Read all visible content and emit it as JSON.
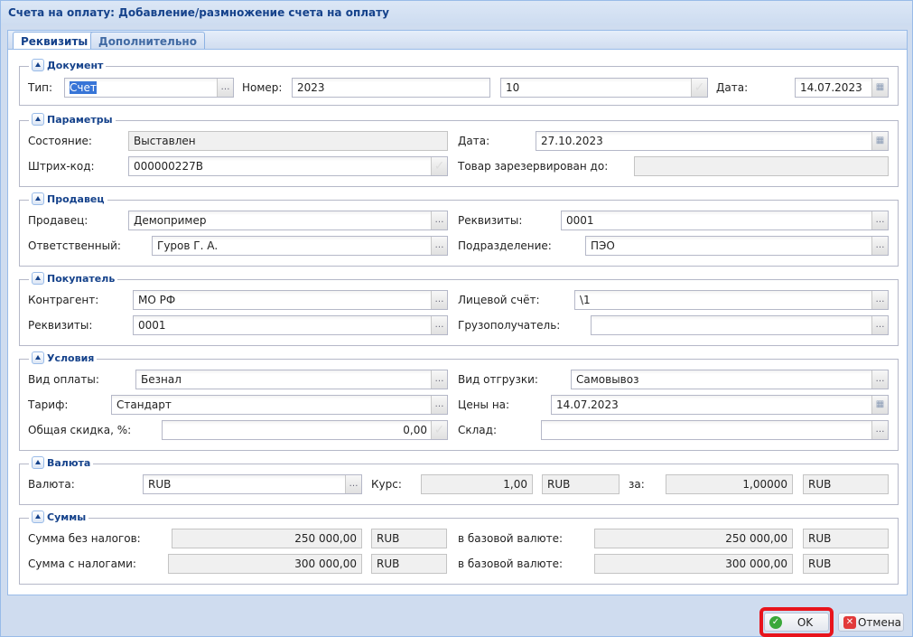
{
  "window": {
    "title": "Счета на оплату: Добавление/размножение счета на оплату"
  },
  "tabs": [
    {
      "label": "Реквизиты",
      "active": true
    },
    {
      "label": "Дополнительно",
      "active": false
    }
  ],
  "sections": [
    {
      "title": "Документ",
      "fields": [
        {
          "label": "Тип:",
          "value": "Счет",
          "kind": "btn",
          "selected": true
        },
        {
          "label": "Номер:",
          "value": "2023",
          "kind": "text"
        },
        {
          "label": "",
          "value": "10",
          "kind": "check"
        },
        {
          "label": "Дата:",
          "value": "14.07.2023",
          "kind": "cal"
        }
      ]
    },
    {
      "title": "Параметры",
      "fields": [
        {
          "label": "Состояние:",
          "value": "Выставлен",
          "kind": "ro"
        },
        {
          "label": "Дата:",
          "value": "27.10.2023",
          "kind": "cal"
        },
        {
          "label": "Штрих-код:",
          "value": "000000227B",
          "kind": "check"
        },
        {
          "label": "Товар зарезервирован до:",
          "value": "",
          "kind": "ro"
        }
      ]
    },
    {
      "title": "Продавец",
      "fields": [
        {
          "label": "Продавец:",
          "value": "Демопример",
          "kind": "btn"
        },
        {
          "label": "Реквизиты:",
          "value": "0001",
          "kind": "btn"
        },
        {
          "label": "Ответственный:",
          "value": "Гуров Г. А.",
          "kind": "btn"
        },
        {
          "label": "Подразделение:",
          "value": "ПЭО",
          "kind": "btn"
        }
      ]
    },
    {
      "title": "Покупатель",
      "fields": [
        {
          "label": "Контрагент:",
          "value": "МО РФ",
          "kind": "btn"
        },
        {
          "label": "Лицевой счёт:",
          "value": "\\1",
          "kind": "btn"
        },
        {
          "label": "Реквизиты:",
          "value": "0001",
          "kind": "btn"
        },
        {
          "label": "Грузополучатель:",
          "value": "",
          "kind": "btn"
        }
      ]
    },
    {
      "title": "Условия",
      "fields": [
        {
          "label": "Вид оплаты:",
          "value": "Безнал",
          "kind": "btn"
        },
        {
          "label": "Вид отгрузки:",
          "value": "Самовывоз",
          "kind": "btn"
        },
        {
          "label": "Тариф:",
          "value": "Стандарт",
          "kind": "btn"
        },
        {
          "label": "Цены на:",
          "value": "14.07.2023",
          "kind": "cal"
        },
        {
          "label": "Общая скидка, %:",
          "value": "0,00",
          "kind": "check",
          "align": "right"
        },
        {
          "label": "Склад:",
          "value": "",
          "kind": "btn"
        }
      ]
    },
    {
      "title": "Валюта",
      "fields": [
        {
          "label": "Валюта:",
          "value": "RUB",
          "kind": "btn"
        },
        {
          "label": "Курс:",
          "value": "1,00",
          "kind": "ro",
          "align": "right"
        },
        {
          "label": "",
          "value": "RUB",
          "kind": "ro"
        },
        {
          "label": "за:",
          "value": "1,00000",
          "kind": "ro",
          "align": "right"
        },
        {
          "label": "",
          "value": "RUB",
          "kind": "ro"
        }
      ]
    },
    {
      "title": "Суммы",
      "fields": [
        {
          "label": "Сумма без налогов:",
          "value": "250 000,00",
          "kind": "ro",
          "align": "right"
        },
        {
          "label": "",
          "value": "RUB",
          "kind": "ro"
        },
        {
          "label": "в базовой валюте:",
          "value": "250 000,00",
          "kind": "ro",
          "align": "right"
        },
        {
          "label": "",
          "value": "RUB",
          "kind": "ro"
        },
        {
          "label": "Сумма с налогами:",
          "value": "300 000,00",
          "kind": "ro",
          "align": "right"
        },
        {
          "label": "",
          "value": "RUB",
          "kind": "ro"
        },
        {
          "label": "в базовой валюте:",
          "value": "300 000,00",
          "kind": "ro",
          "align": "right"
        },
        {
          "label": "",
          "value": "RUB",
          "kind": "ro"
        }
      ]
    }
  ],
  "buttons": {
    "ok": "OK",
    "cancel": "Отмена"
  },
  "colors": {
    "ok_highlight": "#e8141c",
    "accent": "#15428b"
  }
}
